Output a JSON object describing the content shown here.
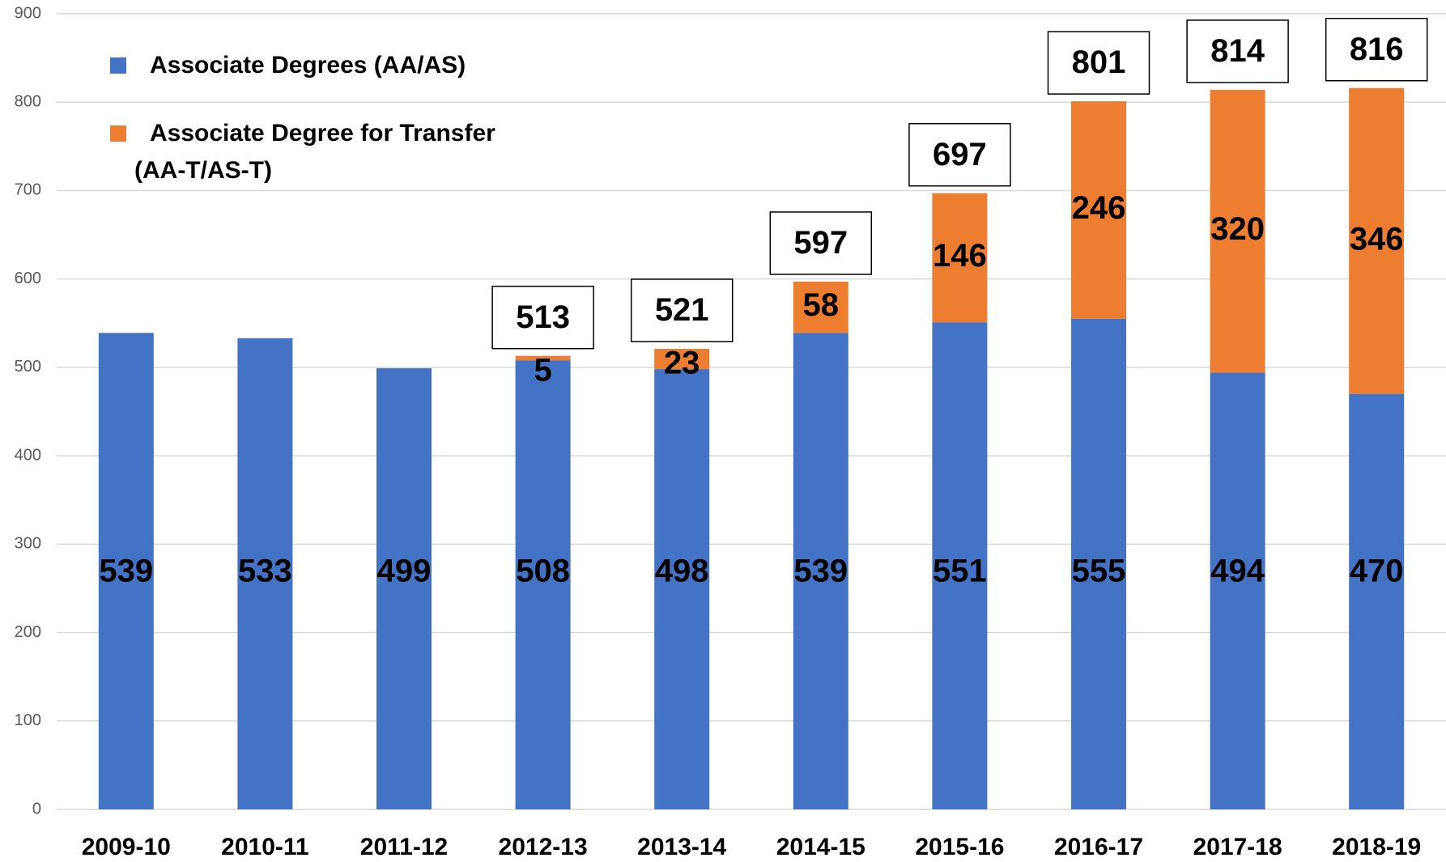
{
  "chart_data": {
    "type": "stacked_bar",
    "categories": [
      "2009-10",
      "2010-11",
      "2011-12",
      "2012-13",
      "2013-14",
      "2014-15",
      "2015-16",
      "2016-17",
      "2017-18",
      "2018-19"
    ],
    "series": [
      {
        "name": "Associate Degrees (AA/AS)",
        "color": "#4472c4",
        "values": [
          539,
          533,
          499,
          508,
          498,
          539,
          551,
          555,
          494,
          470
        ]
      },
      {
        "name": "Associate Degree for Transfer (AA-T/AS-T)",
        "color": "#ed7d31",
        "values": [
          null,
          null,
          null,
          5,
          23,
          58,
          146,
          246,
          320,
          346
        ]
      }
    ],
    "totals": [
      null,
      null,
      null,
      513,
      521,
      597,
      697,
      801,
      814,
      816
    ],
    "ylim": [
      0,
      900
    ],
    "yticks": [
      0,
      100,
      200,
      300,
      400,
      500,
      600,
      700,
      800,
      900
    ],
    "grid": true
  }
}
